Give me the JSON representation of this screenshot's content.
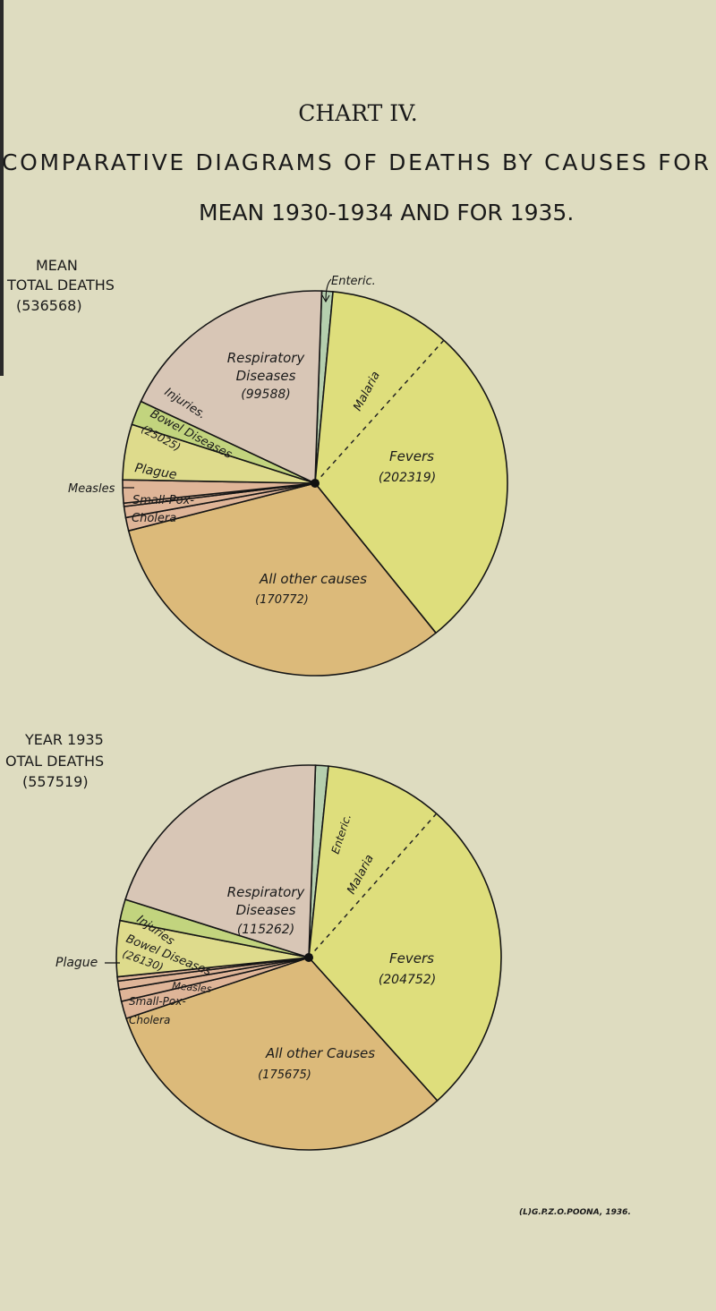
{
  "title": "CHART IV.",
  "subtitle_line1": "COMPARATIVE DIAGRAMS OF DEATHS BY CAUSES FOR",
  "subtitle_line2": "MEAN 1930-1934 AND FOR 1935.",
  "footnote": "(L)G.P.Z.O.POONA, 1936.",
  "colors": {
    "background": "#dedcc0",
    "respiratory": "#d8c6b6",
    "enteric": "#b5cfae",
    "fevers": "#dede7c",
    "other": "#dcba7a",
    "minor": "#dfb598",
    "bowel": "#dedb8c",
    "injuries": "#c2d47e"
  },
  "chart_data": [
    {
      "type": "pie",
      "title_lines": [
        "MEAN",
        "TOTAL DEATHS",
        "(536568)"
      ],
      "total": 536568,
      "slices": [
        {
          "name": "Enteric",
          "label": "Enteric.",
          "value": 5000,
          "estimated": true,
          "color_key": "enteric"
        },
        {
          "name": "Fevers",
          "label": "Fevers",
          "value_label": "(202319)",
          "value": 202319,
          "color_key": "fevers",
          "sub_label": "Malaria"
        },
        {
          "name": "All other causes",
          "label": "All other causes",
          "value_label": "(170772)",
          "value": 170772,
          "color_key": "other"
        },
        {
          "name": "Cholera",
          "label": "Cholera",
          "value": 6000,
          "estimated": true,
          "color_key": "minor"
        },
        {
          "name": "Small-Pox",
          "label": "Small-Pox-",
          "value": 5000,
          "estimated": true,
          "color_key": "minor"
        },
        {
          "name": "Measles",
          "label": "Measles",
          "value": 1500,
          "estimated": true,
          "color_key": "minor"
        },
        {
          "name": "Plague",
          "label": "Plague",
          "value": 10364,
          "estimated": true,
          "color_key": "minor"
        },
        {
          "name": "Bowel Diseases",
          "label": "Bowel Diseases",
          "value_label": "(25025)",
          "value": 25025,
          "color_key": "bowel"
        },
        {
          "name": "Injuries",
          "label": "Injuries.",
          "value": 11000,
          "estimated": true,
          "color_key": "injuries"
        },
        {
          "name": "Respiratory Diseases",
          "label": "Respiratory",
          "label2": "Diseases",
          "value_label": "(99588)",
          "value": 99588,
          "color_key": "respiratory"
        }
      ]
    },
    {
      "type": "pie",
      "title_lines": [
        "YEAR 1935",
        "OTAL DEATHS",
        "(557519)"
      ],
      "total": 557519,
      "slices": [
        {
          "name": "Enteric",
          "label": "Enteric.",
          "value": 6000,
          "estimated": true,
          "color_key": "enteric"
        },
        {
          "name": "Fevers",
          "label": "Fevers",
          "value_label": "(204752)",
          "value": 204752,
          "color_key": "fevers",
          "sub_label": "Malaria"
        },
        {
          "name": "All other Causes",
          "label": "All other Causes",
          "value_label": "(175675)",
          "value": 175675,
          "color_key": "other"
        },
        {
          "name": "Cholera",
          "label": "Cholera",
          "value": 8200,
          "estimated": true,
          "color_key": "minor"
        },
        {
          "name": "Small-Pox",
          "label": "Small-Pox-",
          "value": 5500,
          "estimated": true,
          "color_key": "minor"
        },
        {
          "name": "Measles",
          "label": "Measles",
          "value": 4000,
          "estimated": true,
          "color_key": "minor"
        },
        {
          "name": "Plague",
          "label": "Plague",
          "value": 2000,
          "estimated": true,
          "color_key": "minor"
        },
        {
          "name": "Bowel Diseases",
          "label": "Bowel Diseases",
          "value_label": "(26130)",
          "value": 26130,
          "color_key": "bowel"
        },
        {
          "name": "Injuries",
          "label": "Injuries",
          "value": 10000,
          "estimated": true,
          "color_key": "injuries"
        },
        {
          "name": "Respiratory Diseases",
          "label": "Respiratory",
          "label2": "Diseases",
          "value_label": "(115262)",
          "value": 115262,
          "color_key": "respiratory"
        }
      ]
    }
  ]
}
